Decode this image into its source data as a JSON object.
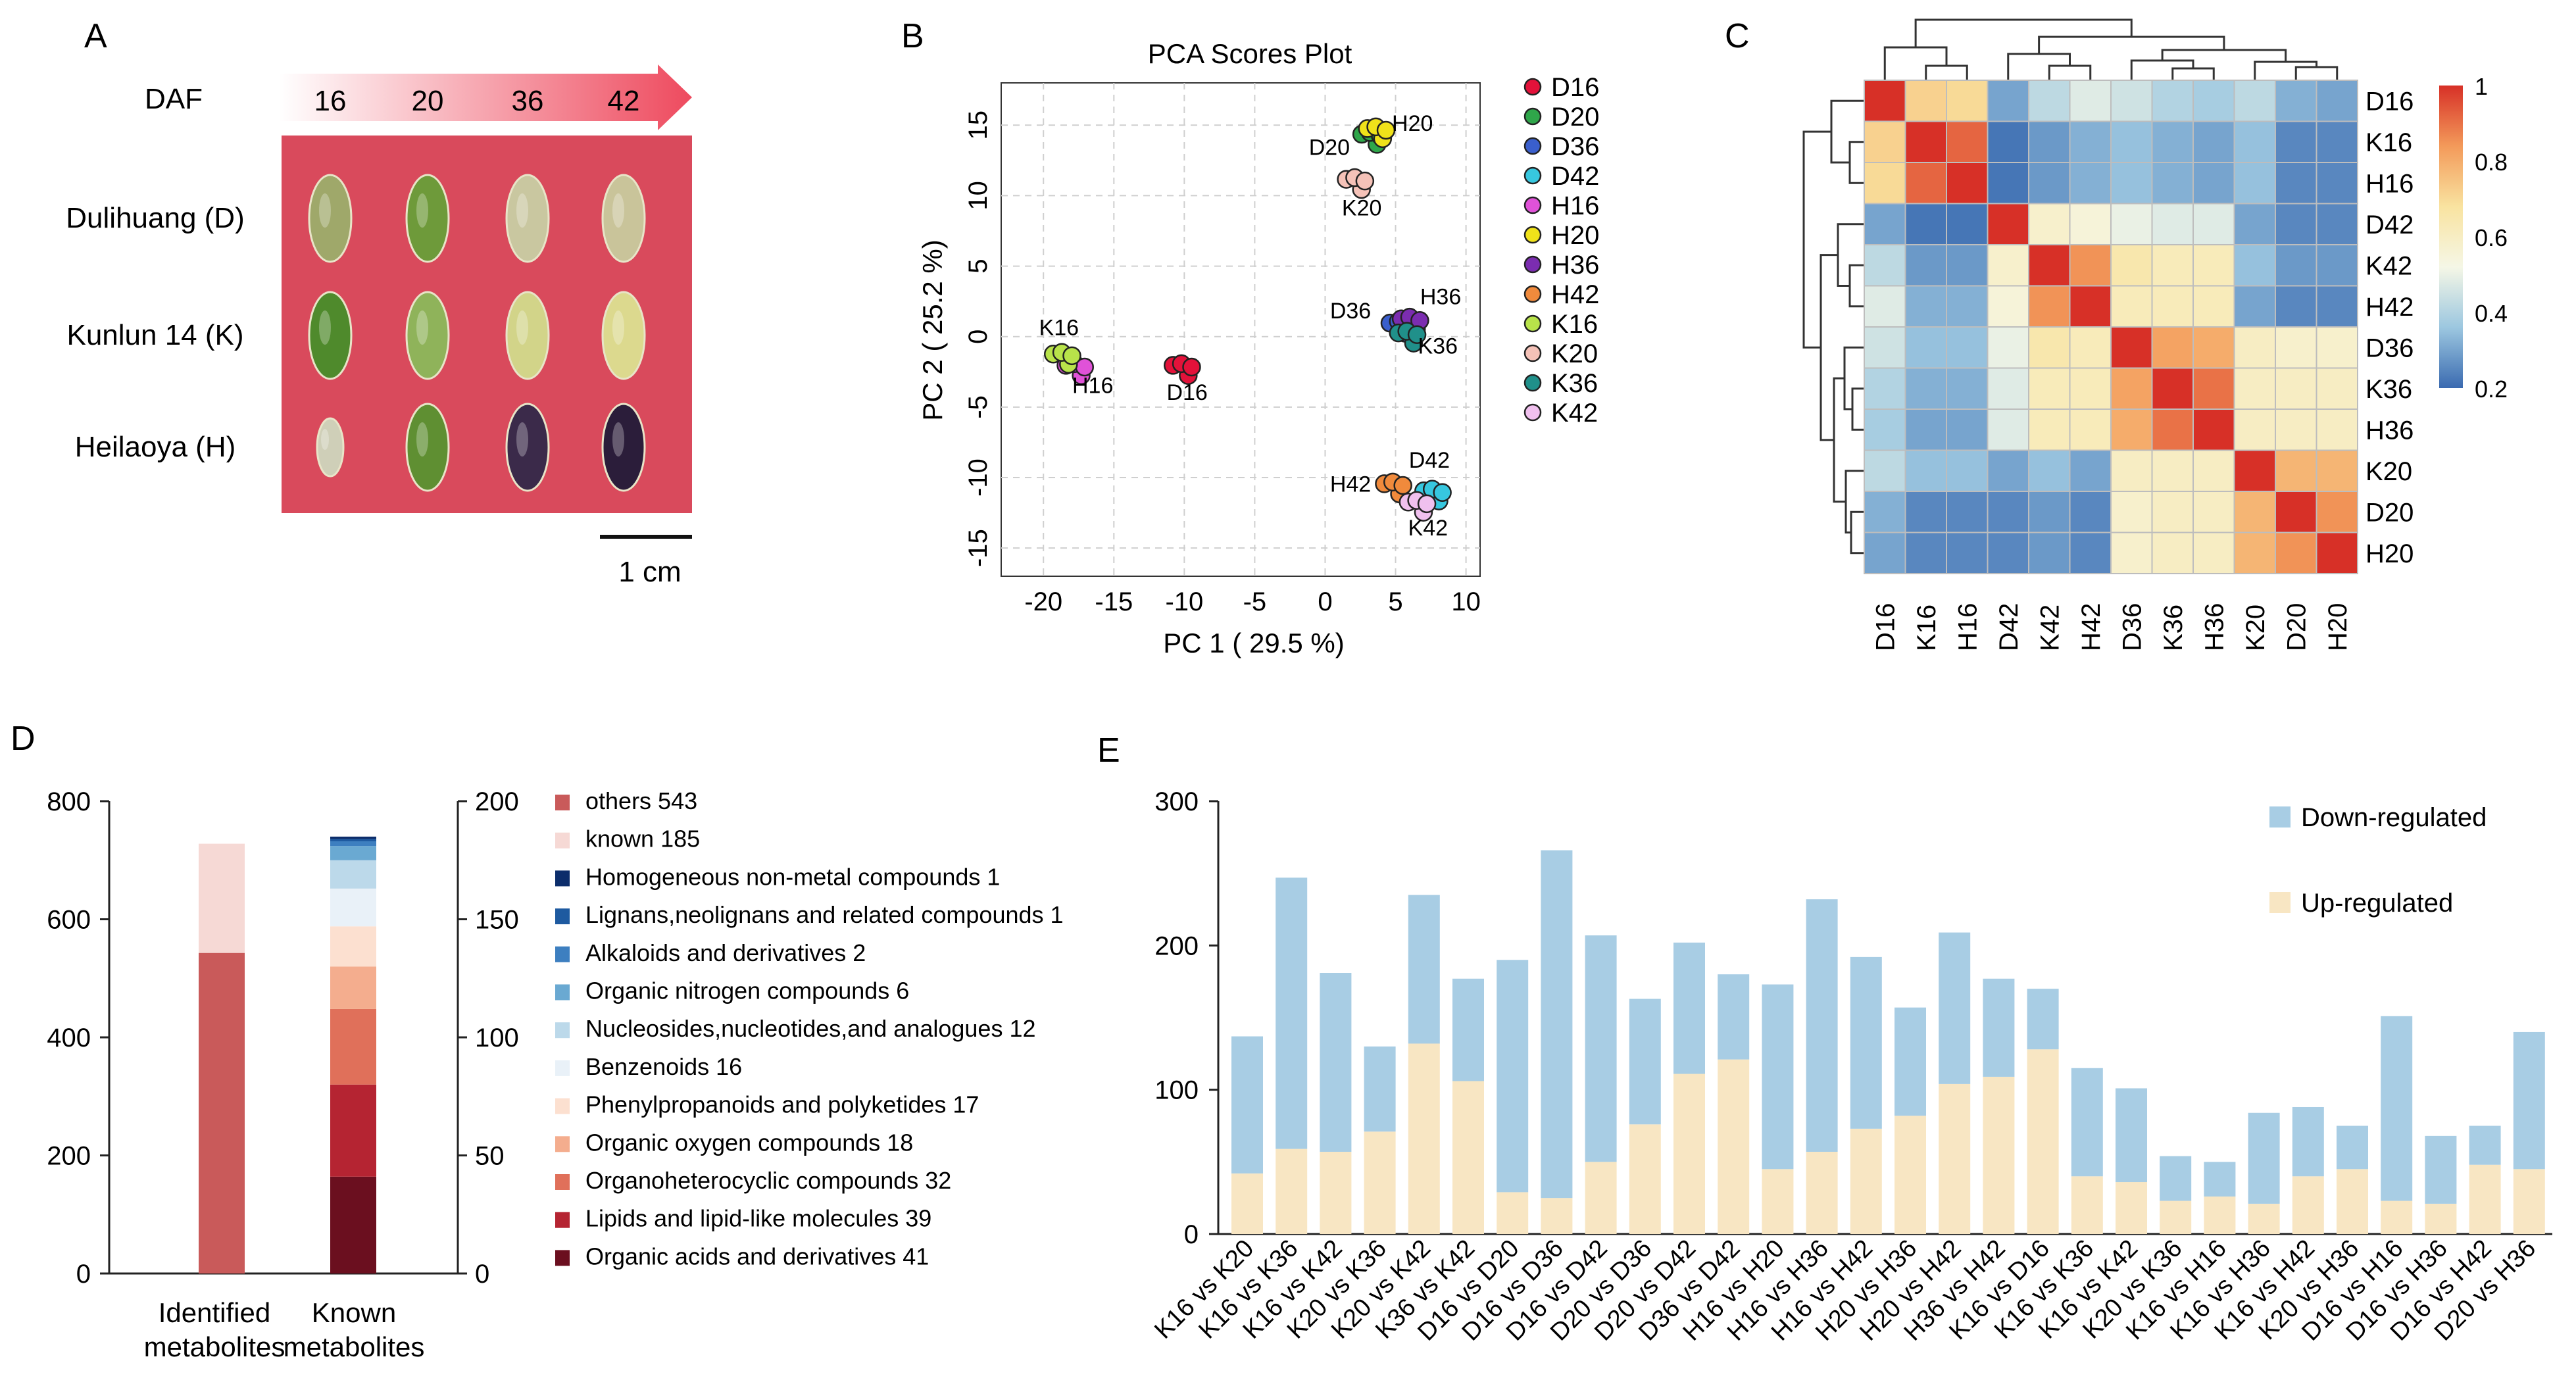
{
  "panels": {
    "A": {
      "letter": "A",
      "daf_label": "DAF",
      "stages": [
        "16",
        "20",
        "36",
        "42"
      ],
      "varieties": [
        "Dulihuang (D)",
        "Kunlun 14 (K)",
        "Heilaoya (H)"
      ],
      "scale_label": "1 cm",
      "colors": {
        "panel_bg": "#d94a5c",
        "arrow_start": "#ffffff",
        "arrow_end": "#ee4a5e"
      },
      "seed_colors": [
        [
          "#9fa86a",
          "#6e9a3a",
          "#c9c7a0",
          "#c9c49a"
        ],
        [
          "#4f8a2c",
          "#8fb35a",
          "#d2d489",
          "#dcd98e"
        ],
        [
          "#cfcfb8",
          "#5f8f32",
          "#3b2a4a",
          "#2b1d3a"
        ]
      ]
    },
    "B": {
      "letter": "B",
      "title": "PCA Scores Plot",
      "xlabel": "PC 1 ( 29.5 %)",
      "ylabel": "PC 2 ( 25.2 %)",
      "xticks": [
        -20,
        -15,
        -10,
        -5,
        0,
        5,
        10
      ],
      "yticks": [
        15,
        10,
        5,
        0,
        -5,
        -10,
        -15
      ],
      "xlim": [
        -23,
        11
      ],
      "ylim": [
        -17,
        18
      ],
      "legend": [
        {
          "name": "D16",
          "color": "#e3123a"
        },
        {
          "name": "D20",
          "color": "#2fa64a"
        },
        {
          "name": "D36",
          "color": "#3a5fcd"
        },
        {
          "name": "D42",
          "color": "#37c7df"
        },
        {
          "name": "H16",
          "color": "#e052d8"
        },
        {
          "name": "H20",
          "color": "#f0e21a"
        },
        {
          "name": "H36",
          "color": "#7b2db0"
        },
        {
          "name": "H42",
          "color": "#f08a3c"
        },
        {
          "name": "K16",
          "color": "#b8e34a"
        },
        {
          "name": "K20",
          "color": "#f5c2b8"
        },
        {
          "name": "K36",
          "color": "#20908a"
        },
        {
          "name": "K42",
          "color": "#f0c0ee"
        }
      ],
      "group_points": [
        {
          "group": "D16",
          "x": -10.2,
          "y": -2.4
        },
        {
          "group": "D20",
          "x": 3.2,
          "y": 14.0
        },
        {
          "group": "D36",
          "x": 5.2,
          "y": 0.6
        },
        {
          "group": "D42",
          "x": 7.6,
          "y": -11.3
        },
        {
          "group": "H16",
          "x": -17.8,
          "y": -2.4
        },
        {
          "group": "H20",
          "x": 3.6,
          "y": 14.4
        },
        {
          "group": "H36",
          "x": 6.0,
          "y": 0.9
        },
        {
          "group": "H42",
          "x": 4.8,
          "y": -10.8
        },
        {
          "group": "K16",
          "x": -18.7,
          "y": -1.6
        },
        {
          "group": "K20",
          "x": 2.1,
          "y": 10.8
        },
        {
          "group": "K36",
          "x": 5.8,
          "y": -0.1
        },
        {
          "group": "K42",
          "x": 6.5,
          "y": -12.1
        }
      ],
      "annotations": [
        {
          "text": "D16",
          "x": -9.8,
          "y": -4.5
        },
        {
          "text": "D20",
          "x": 0.3,
          "y": 12.9
        },
        {
          "text": "H20",
          "x": 6.2,
          "y": 14.6
        },
        {
          "text": "K20",
          "x": 2.6,
          "y": 8.6
        },
        {
          "text": "H36",
          "x": 8.2,
          "y": 2.3
        },
        {
          "text": "D36",
          "x": 1.8,
          "y": 1.3
        },
        {
          "text": "K36",
          "x": 8.0,
          "y": -1.2
        },
        {
          "text": "K16",
          "x": -18.9,
          "y": 0.1
        },
        {
          "text": "H16",
          "x": -16.5,
          "y": -4.0
        },
        {
          "text": "D42",
          "x": 7.4,
          "y": -9.3
        },
        {
          "text": "H42",
          "x": 1.8,
          "y": -11.0
        },
        {
          "text": "K42",
          "x": 7.3,
          "y": -14.1
        }
      ]
    },
    "C": {
      "letter": "C",
      "labels": [
        "D16",
        "K16",
        "H16",
        "D42",
        "K42",
        "H42",
        "D36",
        "K36",
        "H36",
        "K20",
        "D20",
        "H20"
      ],
      "matrix": [
        [
          1.0,
          0.72,
          0.7,
          0.3,
          0.42,
          0.48,
          0.45,
          0.4,
          0.38,
          0.42,
          0.32,
          0.3
        ],
        [
          0.72,
          1.0,
          0.92,
          0.22,
          0.28,
          0.32,
          0.35,
          0.32,
          0.3,
          0.35,
          0.25,
          0.25
        ],
        [
          0.7,
          0.92,
          1.0,
          0.22,
          0.28,
          0.32,
          0.35,
          0.32,
          0.3,
          0.35,
          0.25,
          0.25
        ],
        [
          0.3,
          0.22,
          0.22,
          1.0,
          0.58,
          0.55,
          0.5,
          0.48,
          0.48,
          0.3,
          0.25,
          0.25
        ],
        [
          0.42,
          0.28,
          0.28,
          0.58,
          1.0,
          0.85,
          0.65,
          0.62,
          0.62,
          0.35,
          0.28,
          0.28
        ],
        [
          0.48,
          0.32,
          0.32,
          0.55,
          0.85,
          1.0,
          0.62,
          0.62,
          0.62,
          0.3,
          0.25,
          0.25
        ],
        [
          0.45,
          0.35,
          0.35,
          0.5,
          0.65,
          0.62,
          1.0,
          0.82,
          0.8,
          0.6,
          0.58,
          0.58
        ],
        [
          0.4,
          0.32,
          0.32,
          0.48,
          0.62,
          0.62,
          0.82,
          1.0,
          0.9,
          0.6,
          0.6,
          0.6
        ],
        [
          0.38,
          0.3,
          0.3,
          0.48,
          0.62,
          0.62,
          0.8,
          0.9,
          1.0,
          0.6,
          0.6,
          0.6
        ],
        [
          0.42,
          0.35,
          0.35,
          0.3,
          0.35,
          0.3,
          0.6,
          0.6,
          0.6,
          1.0,
          0.78,
          0.78
        ],
        [
          0.32,
          0.25,
          0.25,
          0.25,
          0.28,
          0.25,
          0.58,
          0.6,
          0.6,
          0.78,
          1.0,
          0.85
        ],
        [
          0.3,
          0.25,
          0.25,
          0.25,
          0.28,
          0.25,
          0.58,
          0.6,
          0.6,
          0.78,
          0.85,
          1.0
        ]
      ],
      "colorbar_ticks": [
        "1",
        "0.8",
        "0.6",
        "0.4",
        "0.2"
      ],
      "colorbar_values": [
        1,
        0.8,
        0.6,
        0.4,
        0.2
      ],
      "colorscale": [
        "#3a6ab0",
        "#9cc7e0",
        "#f5f7e6",
        "#f9e3a0",
        "#f39a5a",
        "#d73027"
      ]
    },
    "D": {
      "letter": "D",
      "categories": [
        "Identified\nmetabolites",
        "Known\nmetabolites"
      ],
      "cat_line1": [
        "Identified",
        "Known"
      ],
      "cat_line2": [
        "metabolites",
        "metabolites"
      ],
      "left_ticks": [
        800,
        600,
        400,
        200,
        0
      ],
      "right_ticks": [
        200,
        150,
        100,
        50,
        0
      ],
      "left_max": 800,
      "right_max": 200,
      "identified_stack": [
        {
          "name": "others",
          "value": 543,
          "color": "#c95a5a"
        },
        {
          "name": "known",
          "value": 185,
          "color": "#f6d9d5"
        }
      ],
      "known_stack": [
        {
          "name": "Organic acids and derivatives",
          "value": 41,
          "color": "#6b0f1f"
        },
        {
          "name": "Lipids and lipid-like molecules",
          "value": 39,
          "color": "#b52432"
        },
        {
          "name": "Organoheterocyclic compounds",
          "value": 32,
          "color": "#e0705a"
        },
        {
          "name": "Organic oxygen compounds",
          "value": 18,
          "color": "#f4ad8e"
        },
        {
          "name": "Phenylpropanoids and polyketides",
          "value": 17,
          "color": "#fce0d0"
        },
        {
          "name": "Benzenoids",
          "value": 16,
          "color": "#e9f1f8"
        },
        {
          "name": "Nucleosides,nucleotides,and analogues",
          "value": 12,
          "color": "#bcd9ea"
        },
        {
          "name": "Organic nitrogen compounds",
          "value": 6,
          "color": "#6aa9d2"
        },
        {
          "name": "Alkaloids and derivatives",
          "value": 2,
          "color": "#3d7fc0"
        },
        {
          "name": "Lignans,neolignans and related compounds",
          "value": 1,
          "color": "#1e5aa0"
        },
        {
          "name": "Homogeneous non-metal compounds",
          "value": 1,
          "color": "#0c2d6b"
        }
      ],
      "legend": [
        {
          "label": "others 543",
          "color": "#c95a5a"
        },
        {
          "label": "known 185",
          "color": "#f6d9d5"
        },
        {
          "label": "Homogeneous non-metal compounds 1",
          "color": "#0c2d6b"
        },
        {
          "label": "Lignans,neolignans and related compounds 1",
          "color": "#1e5aa0"
        },
        {
          "label": "Alkaloids and derivatives 2",
          "color": "#3d7fc0"
        },
        {
          "label": "Organic nitrogen compounds 6",
          "color": "#6aa9d2"
        },
        {
          "label": "Nucleosides,nucleotides,and analogues 12",
          "color": "#bcd9ea"
        },
        {
          "label": "Benzenoids 16",
          "color": "#e9f1f8"
        },
        {
          "label": "Phenylpropanoids and polyketides 17",
          "color": "#fce0d0"
        },
        {
          "label": "Organic oxygen compounds 18",
          "color": "#f4ad8e"
        },
        {
          "label": "Organoheterocyclic compounds 32",
          "color": "#e0705a"
        },
        {
          "label": "Lipids and lipid-like molecules 39",
          "color": "#b52432"
        },
        {
          "label": "Organic acids and derivatives 41",
          "color": "#6b0f1f"
        }
      ]
    },
    "E": {
      "letter": "E",
      "legend": [
        {
          "label": "Down-regulated",
          "color": "#a8cde4"
        },
        {
          "label": "Up-regulated",
          "color": "#f8e6c3"
        }
      ]
    }
  },
  "chart_data": [
    {
      "type": "scatter",
      "title": "PCA Scores Plot",
      "xlabel": "PC 1 ( 29.5 %)",
      "ylabel": "PC 2 ( 25.2 %)",
      "xlim": [
        -23,
        11
      ],
      "ylim": [
        -17,
        18
      ],
      "series": [
        {
          "name": "D16",
          "x": [
            -10.2
          ],
          "y": [
            -2.4
          ]
        },
        {
          "name": "D20",
          "x": [
            3.2
          ],
          "y": [
            14.0
          ]
        },
        {
          "name": "D36",
          "x": [
            5.2
          ],
          "y": [
            0.6
          ]
        },
        {
          "name": "D42",
          "x": [
            7.6
          ],
          "y": [
            -11.3
          ]
        },
        {
          "name": "H16",
          "x": [
            -17.8
          ],
          "y": [
            -2.4
          ]
        },
        {
          "name": "H20",
          "x": [
            3.6
          ],
          "y": [
            14.4
          ]
        },
        {
          "name": "H36",
          "x": [
            6.0
          ],
          "y": [
            0.9
          ]
        },
        {
          "name": "H42",
          "x": [
            4.8
          ],
          "y": [
            -10.8
          ]
        },
        {
          "name": "K16",
          "x": [
            -18.7
          ],
          "y": [
            -1.6
          ]
        },
        {
          "name": "K20",
          "x": [
            2.1
          ],
          "y": [
            10.8
          ]
        },
        {
          "name": "K36",
          "x": [
            5.8
          ],
          "y": [
            -0.1
          ]
        },
        {
          "name": "K42",
          "x": [
            6.5
          ],
          "y": [
            -12.1
          ]
        }
      ]
    },
    {
      "type": "heatmap",
      "title": "",
      "rows": [
        "D16",
        "K16",
        "H16",
        "D42",
        "K42",
        "H42",
        "D36",
        "K36",
        "H36",
        "K20",
        "D20",
        "H20"
      ],
      "cols": [
        "D16",
        "K16",
        "H16",
        "D42",
        "K42",
        "H42",
        "D36",
        "K36",
        "H36",
        "K20",
        "D20",
        "H20"
      ],
      "range": [
        0.2,
        1
      ]
    },
    {
      "type": "bar",
      "stacked": true,
      "categories": [
        "Identified metabolites",
        "Known metabolites"
      ],
      "left_ylim": [
        0,
        800
      ],
      "right_ylim": [
        0,
        200
      ],
      "series": [
        {
          "name": "others",
          "values": [
            543,
            null
          ]
        },
        {
          "name": "known",
          "values": [
            185,
            null
          ]
        },
        {
          "name": "Organic acids and derivatives",
          "values": [
            null,
            41
          ]
        },
        {
          "name": "Lipids and lipid-like molecules",
          "values": [
            null,
            39
          ]
        },
        {
          "name": "Organoheterocyclic compounds",
          "values": [
            null,
            32
          ]
        },
        {
          "name": "Organic oxygen compounds",
          "values": [
            null,
            18
          ]
        },
        {
          "name": "Phenylpropanoids and polyketides",
          "values": [
            null,
            17
          ]
        },
        {
          "name": "Benzenoids",
          "values": [
            null,
            16
          ]
        },
        {
          "name": "Nucleosides,nucleotides,and analogues",
          "values": [
            null,
            12
          ]
        },
        {
          "name": "Organic nitrogen compounds",
          "values": [
            null,
            6
          ]
        },
        {
          "name": "Alkaloids and derivatives",
          "values": [
            null,
            2
          ]
        },
        {
          "name": "Lignans,neolignans and related compounds",
          "values": [
            null,
            1
          ]
        },
        {
          "name": "Homogeneous non-metal compounds",
          "values": [
            null,
            1
          ]
        }
      ]
    },
    {
      "type": "bar",
      "stacked": true,
      "ylim": [
        0,
        300
      ],
      "yticks": [
        0,
        100,
        200,
        300
      ],
      "categories": [
        "K16 vs K20",
        "K16 vs K36",
        "K16 vs K42",
        "K20 vs K36",
        "K20 vs K42",
        "K36 vs K42",
        "D16 vs D20",
        "D16 vs D36",
        "D16 vs D42",
        "D20 vs D36",
        "D20 vs D42",
        "D36 vs D42",
        "H16 vs H20",
        "H16 vs H36",
        "H16 vs H42",
        "H20 vs H36",
        "H20 vs H42",
        "H36 vs H42",
        "K16 vs D16",
        "K16 vs K36",
        "K16 vs K42",
        "K20 vs K36",
        "K16 vs H16",
        "K16 vs H36",
        "K16 vs H42",
        "K20 vs H36",
        "D16 vs H16",
        "D16 vs H36",
        "D16 vs H42",
        "D20 vs H36"
      ],
      "series": [
        {
          "name": "Up-regulated",
          "values": [
            42,
            59,
            57,
            71,
            132,
            106,
            29,
            25,
            50,
            76,
            111,
            121,
            45,
            57,
            73,
            82,
            104,
            109,
            128,
            40,
            36,
            23,
            26,
            21,
            40,
            45,
            23,
            21,
            48,
            45
          ]
        },
        {
          "name": "Down-regulated",
          "values": [
            95,
            188,
            124,
            59,
            103,
            71,
            161,
            241,
            157,
            87,
            91,
            59,
            128,
            175,
            119,
            75,
            105,
            68,
            42,
            75,
            65,
            31,
            24,
            63,
            48,
            30,
            128,
            47,
            27,
            95
          ]
        }
      ]
    }
  ]
}
